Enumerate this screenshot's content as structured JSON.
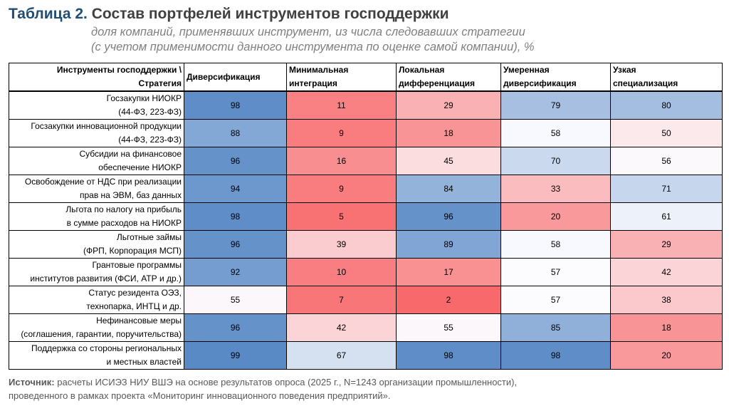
{
  "title": {
    "number": "Таблица 2.",
    "text": "Состав портфелей инструментов господдержки"
  },
  "subtitle": [
    "доля компаний, применявших инструмент, из числа следовавших стратегии",
    "(с учетом применимости данного инструмента по оценке самой компании), %"
  ],
  "table": {
    "corner": [
      "Инструменты господдержки \\",
      "Стратегия"
    ],
    "columns": [
      [
        "Диверсификация"
      ],
      [
        "Минимальная",
        "интеграция"
      ],
      [
        "Локальная",
        "дифференциация"
      ],
      [
        "Умеренная",
        "диверсификация"
      ],
      [
        "Узкая",
        "специализация"
      ]
    ],
    "rows": [
      {
        "name": [
          "Госзакупки НИОКР",
          "(44-ФЗ, 223-ФЗ)"
        ],
        "values": [
          98,
          11,
          29,
          79,
          80
        ]
      },
      {
        "name": [
          "Госзакупки инновационной продукции",
          "(44-ФЗ, 223-ФЗ)"
        ],
        "values": [
          88,
          9,
          18,
          58,
          50
        ]
      },
      {
        "name": [
          "Субсидии на финансовое",
          "обеспечение НИОКР"
        ],
        "values": [
          96,
          16,
          45,
          70,
          56
        ]
      },
      {
        "name": [
          "Освобождение от НДС при реализации",
          "прав на ЭВМ, баз данных"
        ],
        "values": [
          94,
          9,
          84,
          33,
          71
        ]
      },
      {
        "name": [
          "Льгота по налогу на прибыль",
          "в сумме расходов на НИОКР"
        ],
        "values": [
          98,
          5,
          96,
          20,
          61
        ]
      },
      {
        "name": [
          "Льготные займы",
          "(ФРП, Корпорация МСП)"
        ],
        "values": [
          96,
          39,
          89,
          58,
          29
        ]
      },
      {
        "name": [
          "Грантовые программы",
          "институтов развития (ФСИ, АТР и др.)"
        ],
        "values": [
          92,
          10,
          17,
          57,
          42
        ]
      },
      {
        "name": [
          "Статус резидента ОЭЗ,",
          "технопарка, ИНТЦ и др."
        ],
        "values": [
          55,
          7,
          2,
          57,
          38
        ]
      },
      {
        "name": [
          "Нефинансовые меры",
          "(соглашения, гарантии, поручительства)"
        ],
        "values": [
          96,
          42,
          55,
          85,
          18
        ]
      },
      {
        "name": [
          "Поддержка со стороны региональных",
          "и местных властей"
        ],
        "values": [
          99,
          67,
          98,
          98,
          20
        ]
      }
    ]
  },
  "color_scale": {
    "low": "#F8696B",
    "mid": "#FCFCFF",
    "high": "#5A8AC6",
    "low_value": 2,
    "mid_value": 57,
    "high_value": 99
  },
  "source": {
    "label": "Источник:",
    "text": " расчеты ИСИЭЗ НИУ ВШЭ на основе результатов опроса (2025 г., N=1243 организации промышленности),",
    "line2": "проведенного в рамках проекта «Мониторинг инновационного поведения предприятий»."
  }
}
